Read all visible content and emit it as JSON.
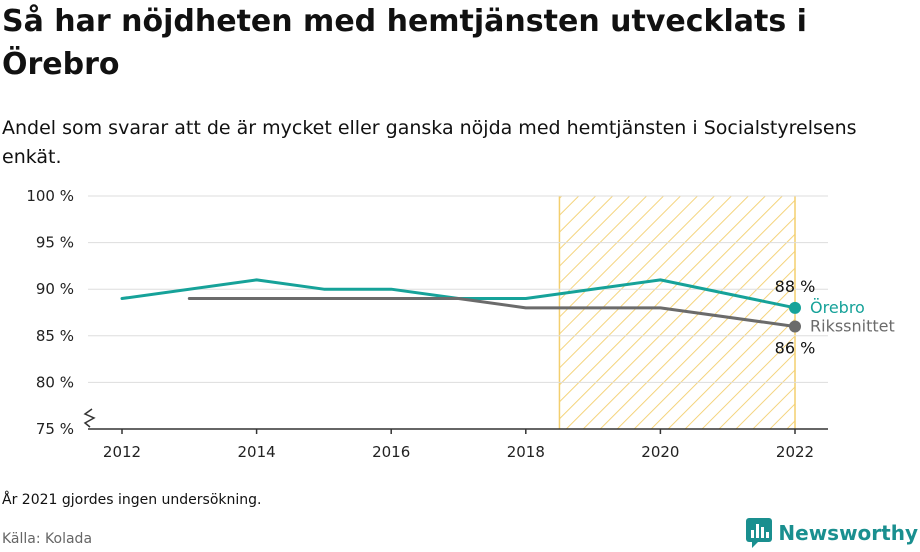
{
  "title": "Så har nöjdheten med hemtjänsten utvecklats i Örebro",
  "subtitle": "Andel som svarar att de är mycket eller ganska nöjda med hemtjänsten i Socialstyrelsens enkät.",
  "note": "År 2021 gjordes ingen undersökning.",
  "source": "Källa: Kolada",
  "brand": "Newsworthy",
  "colors": {
    "orebro": "#16a299",
    "riks": "#6b6b6b",
    "highlight": "#f3cf6e",
    "grid": "#dddddd",
    "brand": "#1a8f8f"
  },
  "chart_data": {
    "type": "line",
    "x_ticks": [
      2012,
      2014,
      2016,
      2018,
      2020,
      2022
    ],
    "y_ticks": [
      75,
      80,
      85,
      90,
      95,
      100
    ],
    "y_tick_labels": [
      "75 %",
      "80 %",
      "85 %",
      "90 %",
      "95 %",
      "100 %"
    ],
    "xlim": [
      2012,
      2022
    ],
    "ylim": [
      75,
      100
    ],
    "y_axis_break": true,
    "grid": "horizontal",
    "highlight_range": [
      2018.5,
      2022
    ],
    "series": [
      {
        "name": "Örebro",
        "color": "#16a299",
        "x": [
          2012,
          2014,
          2015,
          2016,
          2017,
          2018,
          2020,
          2022
        ],
        "y": [
          89,
          91,
          90,
          90,
          89,
          89,
          91,
          88
        ],
        "end_label": "88 %"
      },
      {
        "name": "Rikssnittet",
        "color": "#6b6b6b",
        "x": [
          2013,
          2014,
          2015,
          2016,
          2017,
          2018,
          2020,
          2022
        ],
        "y": [
          89,
          89,
          89,
          89,
          89,
          88,
          88,
          86
        ],
        "end_label": "86 %"
      }
    ]
  }
}
